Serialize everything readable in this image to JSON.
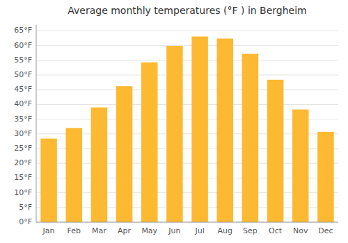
{
  "chart_data": {
    "type": "bar",
    "title": "Average monthly temperatures (°F ) in Bergheim",
    "categories": [
      "Jan",
      "Feb",
      "Mar",
      "Apr",
      "May",
      "Jun",
      "Jul",
      "Aug",
      "Sep",
      "Oct",
      "Nov",
      "Dec"
    ],
    "values": [
      28.4,
      32.0,
      39.0,
      46.2,
      54.3,
      59.9,
      63.1,
      62.4,
      57.2,
      48.4,
      38.3,
      30.7
    ],
    "color": "#FDB931",
    "ylim": [
      0,
      67
    ],
    "yticks": [
      {
        "value": 0,
        "label": "0°F"
      },
      {
        "value": 5,
        "label": "5°F"
      },
      {
        "value": 10,
        "label": "10°F"
      },
      {
        "value": 15,
        "label": "15°F"
      },
      {
        "value": 20,
        "label": "20°F"
      },
      {
        "value": 25,
        "label": "25°F"
      },
      {
        "value": 30,
        "label": "30°F"
      },
      {
        "value": 35,
        "label": "35°F"
      },
      {
        "value": 40,
        "label": "40°F"
      },
      {
        "value": 45,
        "label": "45°F"
      },
      {
        "value": 50,
        "label": "50°F"
      },
      {
        "value": 55,
        "label": "55°F"
      },
      {
        "value": 60,
        "label": "60°F"
      },
      {
        "value": 65,
        "label": "65°F"
      }
    ],
    "grid": true
  }
}
